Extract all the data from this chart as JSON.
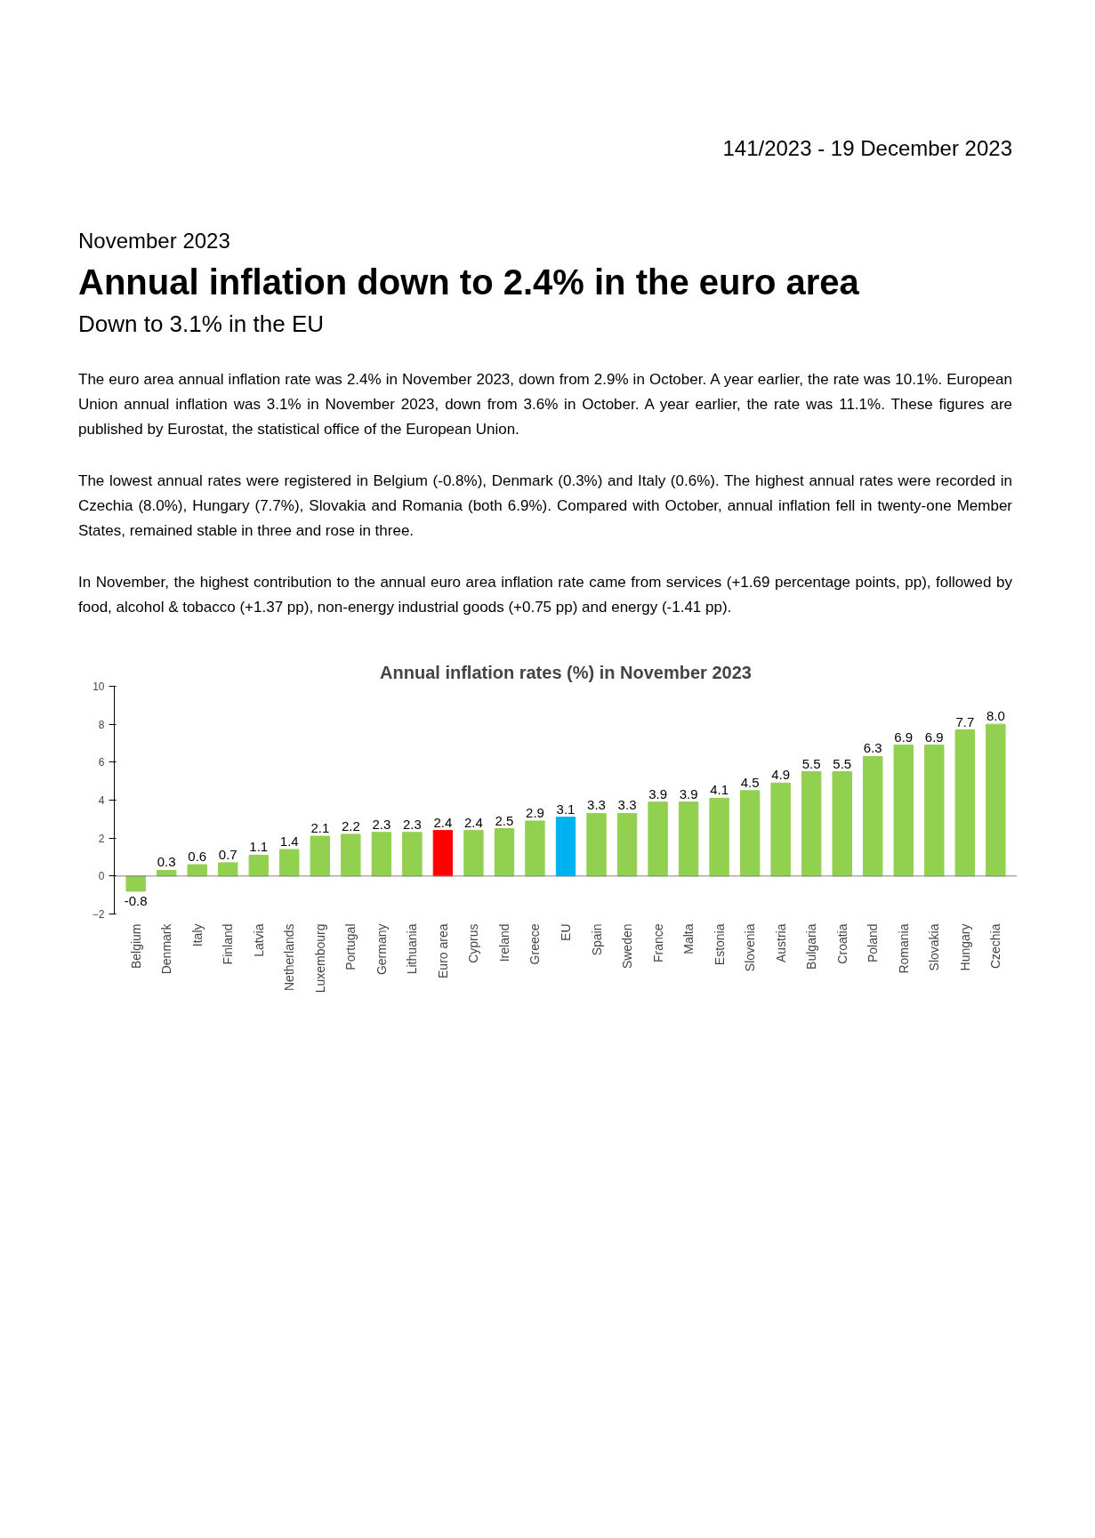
{
  "chart_data": {
    "type": "bar",
    "title": "Annual inflation rates (%) in November 2023",
    "categories": [
      "Belgium",
      "Denmark",
      "Italy",
      "Finland",
      "Latvia",
      "Netherlands",
      "Luxembourg",
      "Portugal",
      "Germany",
      "Lithuania",
      "Euro area",
      "Cyprus",
      "Ireland",
      "Greece",
      "EU",
      "Spain",
      "Sweden",
      "France",
      "Malta",
      "Estonia",
      "Slovenia",
      "Austria",
      "Bulgaria",
      "Croatia",
      "Poland",
      "Romania",
      "Slovakia",
      "Hungary",
      "Czechia"
    ],
    "values": [
      -0.8,
      0.3,
      0.6,
      0.7,
      1.1,
      1.4,
      2.1,
      2.2,
      2.3,
      2.3,
      2.4,
      2.4,
      2.5,
      2.9,
      3.1,
      3.3,
      3.3,
      3.9,
      3.9,
      4.1,
      4.5,
      4.9,
      5.5,
      5.5,
      6.3,
      6.9,
      6.9,
      7.7,
      8.0
    ],
    "value_labels": [
      "-0.8",
      "0.3",
      "0.6",
      "0.7",
      "1.1",
      "1.4",
      "2.1",
      "2.2",
      "2.3",
      "2.3",
      "2.4",
      "2.4",
      "2.5",
      "2.9",
      "3.1",
      "3.3",
      "3.3",
      "3.9",
      "3.9",
      "4.1",
      "4.5",
      "4.9",
      "5.5",
      "5.5",
      "6.3",
      "6.9",
      "6.9",
      "7.7",
      "8.0"
    ],
    "colors": [
      "#92d050",
      "#92d050",
      "#92d050",
      "#92d050",
      "#92d050",
      "#92d050",
      "#92d050",
      "#92d050",
      "#92d050",
      "#92d050",
      "#ff0000",
      "#92d050",
      "#92d050",
      "#92d050",
      "#00b0f0",
      "#92d050",
      "#92d050",
      "#92d050",
      "#92d050",
      "#92d050",
      "#92d050",
      "#92d050",
      "#92d050",
      "#92d050",
      "#92d050",
      "#92d050",
      "#92d050",
      "#92d050",
      "#92d050"
    ],
    "ylim": [
      -2,
      10
    ],
    "yticks": [
      -2,
      0,
      2,
      4,
      6,
      8,
      10
    ],
    "annotations": [
      "141/2023  -  19 December 2023",
      "November 2023",
      "Annual inflation down to 2.4% in the euro area",
      "Down to 3.1% in the EU",
      "The euro area annual inflation rate was 2.4% in November 2023, down from 2.9% in October. A year earlier, the rate was 10.1%. European Union annual inflation was 3.1% in November 2023, down from 3.6% in October. A year earlier, the rate was 11.1%. These figures are published by Eurostat, the statistical office of the European Union.",
      "The lowest annual rates were registered in Belgium (-0.8%), Denmark (0.3%) and Italy (0.6%). The highest annual rates were recorded in Czechia (8.0%), Hungary (7.7%), Slovakia and Romania (both 6.9%). Compared with October, annual inflation fell in twenty-one Member States, remained stable in three and rose in three.",
      "In November, the highest contribution to the annual euro area inflation rate came from services (+1.69 percentage points, pp), followed by food, alcohol & tobacco (+1.37 pp), non-energy industrial goods (+0.75 pp) and energy (-1.41 pp)."
    ]
  }
}
